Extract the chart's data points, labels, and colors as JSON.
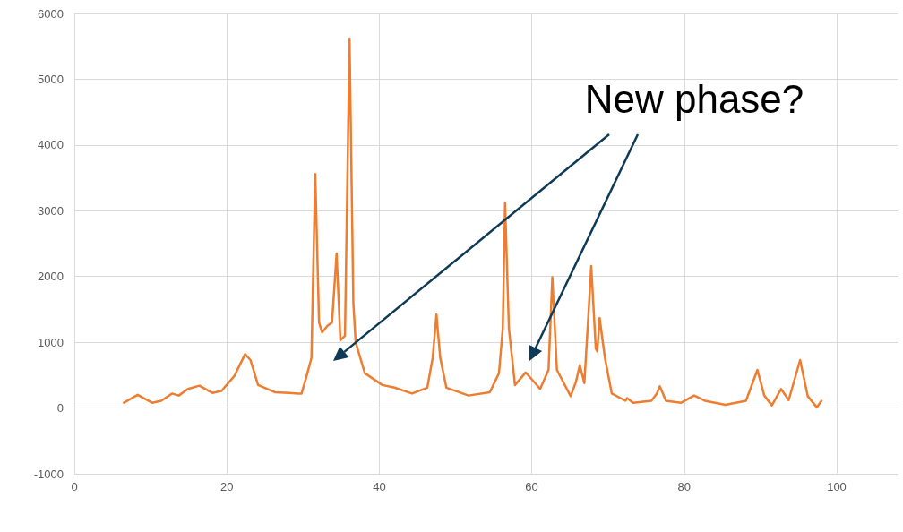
{
  "chart_data": {
    "type": "line",
    "xlim": [
      0,
      108
    ],
    "xticks": [
      0,
      20,
      40,
      60,
      80,
      100
    ],
    "ylim": [
      -1000,
      6000
    ],
    "yticks": [
      -1000,
      0,
      1000,
      2000,
      3000,
      4000,
      5000,
      6000
    ],
    "grid": true,
    "marker": "none",
    "line_style": "solid",
    "annotations": [
      "New phase?"
    ],
    "series": [
      {
        "color": "#ed7d31",
        "x": [
          6.5,
          8.3,
          10.2,
          11.4,
          12.8,
          13.7,
          14.9,
          16.4,
          18.1,
          19.3,
          21.0,
          22.4,
          23.1,
          24.1,
          26.3,
          28.2,
          29.4,
          29.8,
          30.4,
          31.1,
          31.6,
          32.1,
          32.5,
          33.2,
          33.8,
          34.4,
          34.9,
          35.5,
          36.1,
          36.6,
          36.9,
          38.1,
          40.4,
          42.0,
          44.3,
          46.3,
          47.0,
          47.5,
          48.0,
          48.8,
          51.7,
          54.5,
          55.7,
          56.2,
          56.5,
          57.0,
          57.8,
          59.2,
          59.9,
          61.1,
          62.2,
          62.7,
          63.3,
          65.1,
          65.8,
          66.3,
          66.9,
          67.4,
          67.8,
          68.4,
          68.6,
          68.9,
          69.6,
          70.5,
          72.3,
          72.5,
          73.3,
          75.7,
          76.4,
          76.8,
          77.6,
          79.6,
          81.3,
          82.7,
          85.4,
          88.1,
          89.6,
          90.5,
          91.5,
          92.7,
          93.7,
          95.2,
          96.2,
          97.4,
          98.0
        ],
        "values": [
          80,
          200,
          80,
          110,
          220,
          190,
          290,
          340,
          230,
          260,
          490,
          820,
          730,
          350,
          240,
          230,
          220,
          220,
          460,
          760,
          3560,
          1300,
          1150,
          1250,
          1300,
          2350,
          1030,
          1100,
          5620,
          1600,
          1000,
          530,
          350,
          310,
          220,
          310,
          760,
          1420,
          760,
          310,
          190,
          240,
          530,
          1210,
          3120,
          1210,
          350,
          540,
          450,
          290,
          580,
          1990,
          580,
          180,
          400,
          650,
          380,
          1350,
          2160,
          900,
          860,
          1370,
          760,
          220,
          110,
          150,
          80,
          110,
          220,
          330,
          110,
          80,
          190,
          110,
          50,
          110,
          580,
          190,
          40,
          290,
          120,
          730,
          180,
          10,
          110
        ]
      }
    ]
  }
}
